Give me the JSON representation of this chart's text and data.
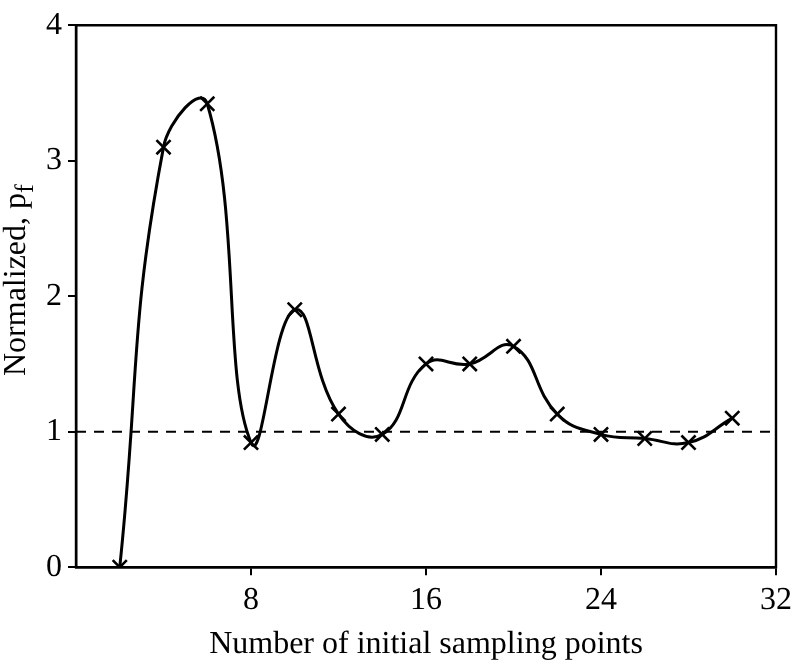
{
  "chart_data": {
    "type": "line",
    "xlabel": "Number of initial sampling points",
    "ylabel": "Normalized, p$_{f}$",
    "x": [
      2,
      4,
      6,
      8,
      10,
      12,
      14,
      16,
      18,
      20,
      22,
      24,
      26,
      28,
      30
    ],
    "series": [
      {
        "color": "#000000",
        "values": [
          0,
          3.1,
          3.42,
          0.92,
          1.9,
          1.13,
          0.98,
          1.5,
          1.5,
          1.63,
          1.13,
          0.98,
          0.95,
          0.92,
          1.1
        ]
      }
    ],
    "xlim": [
      0,
      32
    ],
    "xticks": [
      8,
      16,
      24,
      32
    ],
    "ylim": [
      0,
      4
    ],
    "yticks": [
      0,
      1,
      2,
      3,
      4
    ],
    "ref_lines": [
      {
        "axis": "y",
        "value": 1,
        "line_style": "dashed",
        "color": "#000000"
      }
    ],
    "marker": "cross",
    "line_style": "solid",
    "grid": false,
    "legend": false
  }
}
